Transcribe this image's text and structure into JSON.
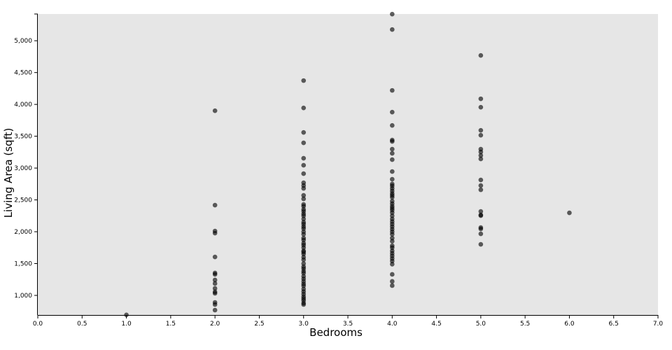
{
  "chart_data": {
    "type": "scatter",
    "title": "",
    "xlabel": "Bedrooms",
    "ylabel": "Living Area (sqft)",
    "xlim": [
      0,
      7
    ],
    "ylim": [
      692,
      5420
    ],
    "xticks": [
      "0.0",
      "0.5",
      "1.0",
      "1.5",
      "2.0",
      "2.5",
      "3.0",
      "3.5",
      "4.0",
      "4.5",
      "5.0",
      "5.5",
      "6.0",
      "6.5",
      "7.0"
    ],
    "xtick_values": [
      0,
      0.5,
      1,
      1.5,
      2,
      2.5,
      3,
      3.5,
      4,
      4.5,
      5,
      5.5,
      6,
      6.5,
      7
    ],
    "yticks": [
      "1,000",
      "1,500",
      "2,000",
      "2,500",
      "3,000",
      "3,500",
      "4,000",
      "4,500",
      "5,000"
    ],
    "ytick_values": [
      1000,
      1500,
      2000,
      2500,
      3000,
      3500,
      4000,
      4500,
      5000
    ],
    "grid": false,
    "background": "#e6e6e6",
    "point_color": "#000000",
    "points": [
      {
        "x": 1,
        "ys": [
          694
        ]
      },
      {
        "x": 2,
        "ys": [
          3901,
          2418,
          2011,
          1978,
          1604,
          1352,
          1330,
          1242,
          1187,
          1110,
          1055,
          1033,
          890,
          857,
          769
        ]
      },
      {
        "x": 3,
        "ys": [
          4374,
          3945,
          3560,
          3396,
          3154,
          3044,
          2912,
          2769,
          2725,
          2681,
          2571,
          2516,
          2429,
          2400,
          2350,
          2320,
          2280,
          2250,
          2200,
          2150,
          2120,
          2080,
          2050,
          2000,
          1960,
          1900,
          1870,
          1820,
          1790,
          1750,
          1700,
          1680,
          1650,
          1600,
          1560,
          1500,
          1450,
          1420,
          1380,
          1350,
          1300,
          1260,
          1220,
          1180,
          1150,
          1100,
          1060,
          1020,
          980,
          950,
          920,
          880,
          857
        ]
      },
      {
        "x": 4,
        "ys": [
          5418,
          5176,
          4220,
          3879,
          3670,
          3440,
          3418,
          3297,
          3231,
          3132,
          2945,
          2824,
          2750,
          2720,
          2680,
          2640,
          2600,
          2570,
          2540,
          2480,
          2440,
          2400,
          2370,
          2340,
          2300,
          2250,
          2200,
          2160,
          2120,
          2080,
          2040,
          2000,
          1960,
          1900,
          1850,
          1780,
          1750,
          1700,
          1660,
          1620,
          1580,
          1540,
          1490,
          1330,
          1220,
          1154
        ]
      },
      {
        "x": 5,
        "ys": [
          4769,
          4088,
          3956,
          3593,
          3516,
          3297,
          3253,
          3198,
          3143,
          2813,
          2725,
          2659,
          2319,
          2264,
          2253,
          2066,
          2044,
          1967,
          1802
        ]
      },
      {
        "x": 6,
        "ys": [
          2297
        ]
      }
    ]
  }
}
